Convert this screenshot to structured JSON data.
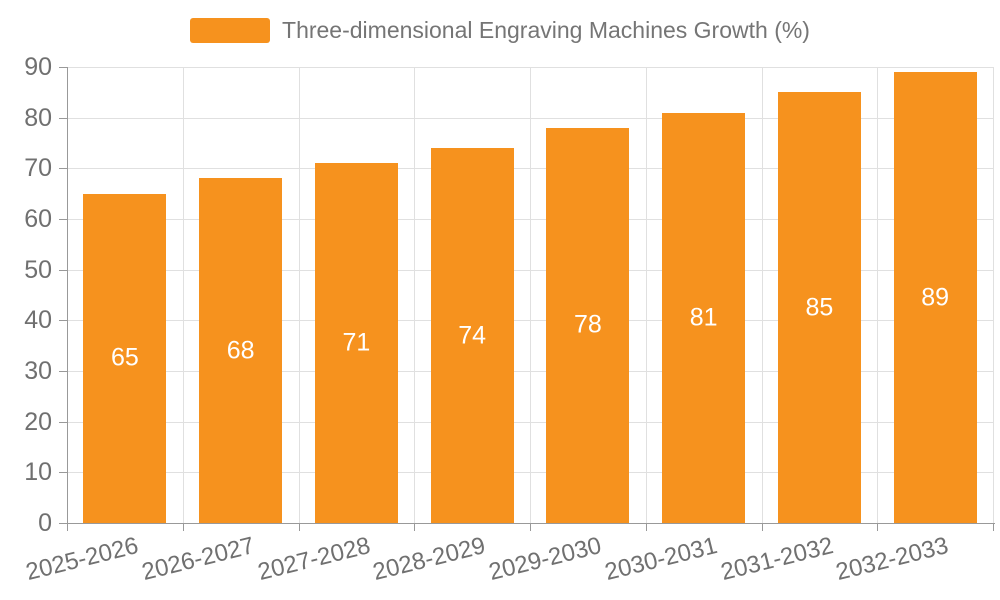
{
  "legend": {
    "label": "Three-dimensional Engraving Machines Growth (%)"
  },
  "chart_data": {
    "type": "bar",
    "title": "",
    "series_name": "Three-dimensional Engraving Machines Growth (%)",
    "categories": [
      "2025-2026",
      "2026-2027",
      "2027-2028",
      "2028-2029",
      "2029-2030",
      "2030-2031",
      "2031-2032",
      "2032-2033"
    ],
    "values": [
      65,
      68,
      71,
      74,
      78,
      81,
      85,
      89
    ],
    "y_ticks": [
      0,
      10,
      20,
      30,
      40,
      50,
      60,
      70,
      80,
      90
    ],
    "ylim": [
      0,
      90
    ],
    "xlabel": "",
    "ylabel": "",
    "grid": true,
    "legend_position": "top-center",
    "value_labels_position": "inside-center"
  },
  "colors": {
    "bar": "#F6921E",
    "axis_line": "#999999",
    "gridline": "#E0E0E0",
    "tick_text": "#707070",
    "legend_text": "#757575",
    "value_label": "#FFFFFF",
    "background": "#FFFFFF"
  }
}
